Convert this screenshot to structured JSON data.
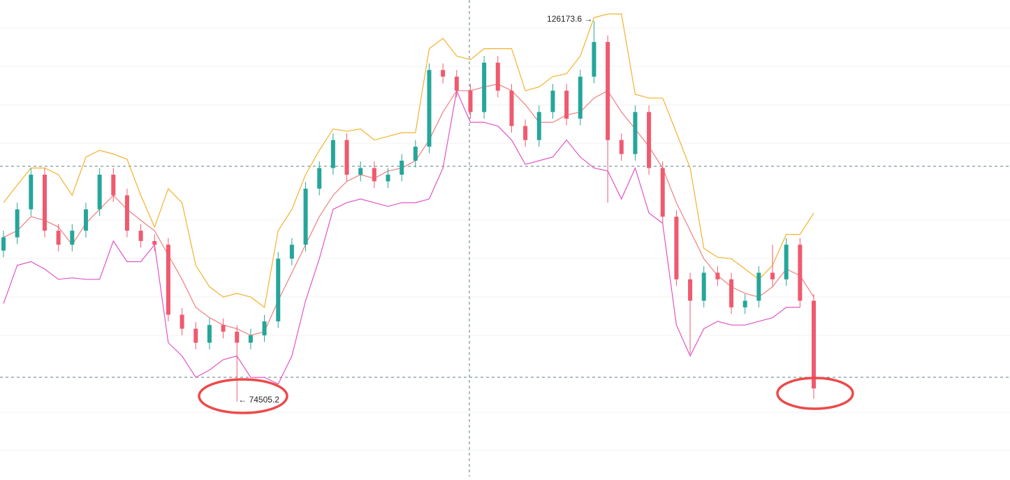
{
  "chart_data": {
    "type": "candlestick",
    "ylim": [
      64350,
      129000
    ],
    "up_color": "#26a69a",
    "down_color": "#ef5a6f",
    "open": [
      95000,
      96800,
      100600,
      105300,
      97700,
      95800,
      97700,
      100600,
      105300,
      102500,
      97700,
      96300,
      95800,
      86300,
      84400,
      82500,
      84900,
      84000,
      82500,
      83500,
      85400,
      93900,
      95800,
      103400,
      106200,
      110000,
      105300,
      106200,
      104400,
      105300,
      107200,
      109100,
      119500,
      118600,
      116700,
      113800,
      120500,
      116700,
      111900,
      110000,
      113800,
      116700,
      112900,
      118600,
      123300,
      110000,
      108100,
      113800,
      106200,
      99600,
      91100,
      88200,
      92000,
      91100,
      87300,
      88200,
      92000,
      91100,
      95800,
      88200
    ],
    "high": [
      97700,
      101500,
      106200,
      106200,
      98600,
      98600,
      101500,
      106200,
      106200,
      103400,
      98600,
      97200,
      96700,
      87200,
      85300,
      85800,
      85800,
      84900,
      84400,
      86300,
      94800,
      96700,
      104300,
      107100,
      110900,
      110900,
      107100,
      107100,
      106200,
      108100,
      110000,
      120400,
      120400,
      119500,
      117600,
      121400,
      121400,
      117600,
      112800,
      114700,
      117600,
      117600,
      119500,
      126173.6,
      124200,
      110900,
      114700,
      114700,
      107100,
      100500,
      92000,
      92900,
      92900,
      92000,
      89100,
      92900,
      95800,
      96700,
      96700,
      89100
    ],
    "low": [
      94100,
      95900,
      99700,
      96800,
      94900,
      94900,
      96800,
      99700,
      101600,
      96800,
      95400,
      94900,
      85400,
      83500,
      81600,
      81600,
      83100,
      74505.2,
      81600,
      82600,
      84500,
      93000,
      94900,
      102500,
      105300,
      104400,
      104400,
      103500,
      103500,
      104400,
      106300,
      108200,
      117700,
      115800,
      112900,
      112900,
      115800,
      111000,
      109100,
      109100,
      112900,
      112000,
      112000,
      117700,
      101500,
      107200,
      107200,
      105300,
      98700,
      90200,
      81000,
      87300,
      90200,
      86400,
      86400,
      87300,
      90200,
      90200,
      87300,
      74900
    ],
    "close": [
      96800,
      100600,
      105300,
      97700,
      95800,
      97700,
      100600,
      105300,
      102500,
      97700,
      96300,
      95800,
      86300,
      84400,
      82500,
      84900,
      84000,
      82500,
      83500,
      85400,
      93900,
      95800,
      103400,
      106200,
      110000,
      105300,
      106200,
      104400,
      105300,
      107200,
      109100,
      119500,
      118600,
      116700,
      113800,
      120500,
      116700,
      111900,
      110000,
      113800,
      116700,
      112900,
      118600,
      123300,
      110000,
      108100,
      113800,
      106200,
      99600,
      91100,
      88200,
      92000,
      91100,
      87300,
      88200,
      92000,
      91100,
      95800,
      88200,
      76300
    ],
    "lines": [
      {
        "color": "#f2b22e",
        "values": [
          101500,
          103900,
          106200,
          106200,
          105300,
          102500,
          107700,
          108600,
          108100,
          107400,
          102500,
          98200,
          103400,
          101500,
          93000,
          90100,
          88700,
          89200,
          88700,
          87300,
          97700,
          100600,
          105300,
          108600,
          111500,
          111200,
          111500,
          110000,
          110500,
          111000,
          111000,
          122400,
          123800,
          121400,
          120900,
          122400,
          122400,
          122400,
          116700,
          117200,
          118600,
          119000,
          121400,
          126600,
          127100,
          127100,
          116200,
          115700,
          115700,
          111000,
          106200,
          95300,
          94100,
          93900,
          92500,
          91100,
          93000,
          97200,
          97200,
          100100
        ]
      },
      {
        "color": "#f07f7f",
        "values": [
          96800,
          97700,
          99600,
          99100,
          98200,
          95800,
          98700,
          100600,
          102500,
          100600,
          99100,
          97700,
          94400,
          91100,
          87300,
          85900,
          84900,
          84400,
          83500,
          84000,
          88200,
          92000,
          95800,
          99600,
          102500,
          104400,
          105300,
          104800,
          105800,
          106200,
          107200,
          110000,
          113800,
          116700,
          116700,
          117200,
          117600,
          116700,
          114800,
          112400,
          112400,
          113400,
          113800,
          115700,
          116700,
          113800,
          111500,
          109100,
          106200,
          101500,
          97700,
          93900,
          91600,
          90100,
          89200,
          88700,
          90100,
          92500,
          91600,
          88700
        ]
      },
      {
        "color": "#e055c6",
        "values": [
          87800,
          93000,
          93500,
          92500,
          91100,
          91300,
          91100,
          91100,
          96300,
          93500,
          93500,
          95800,
          82500,
          80700,
          77800,
          78800,
          80200,
          80700,
          77800,
          77800,
          76900,
          80700,
          88200,
          93900,
          100600,
          101500,
          102000,
          101500,
          101000,
          101500,
          101500,
          102000,
          106200,
          116700,
          112400,
          112400,
          111900,
          110000,
          106700,
          107200,
          107700,
          110000,
          107700,
          106200,
          105800,
          102000,
          106200,
          100100,
          98700,
          84900,
          80700,
          84400,
          85400,
          84900,
          84900,
          85400,
          85900,
          87300,
          87300,
          null
        ]
      }
    ],
    "annotations": [
      {
        "text": "126173.6 →"
      },
      {
        "text": "← 74505.2"
      }
    ]
  }
}
